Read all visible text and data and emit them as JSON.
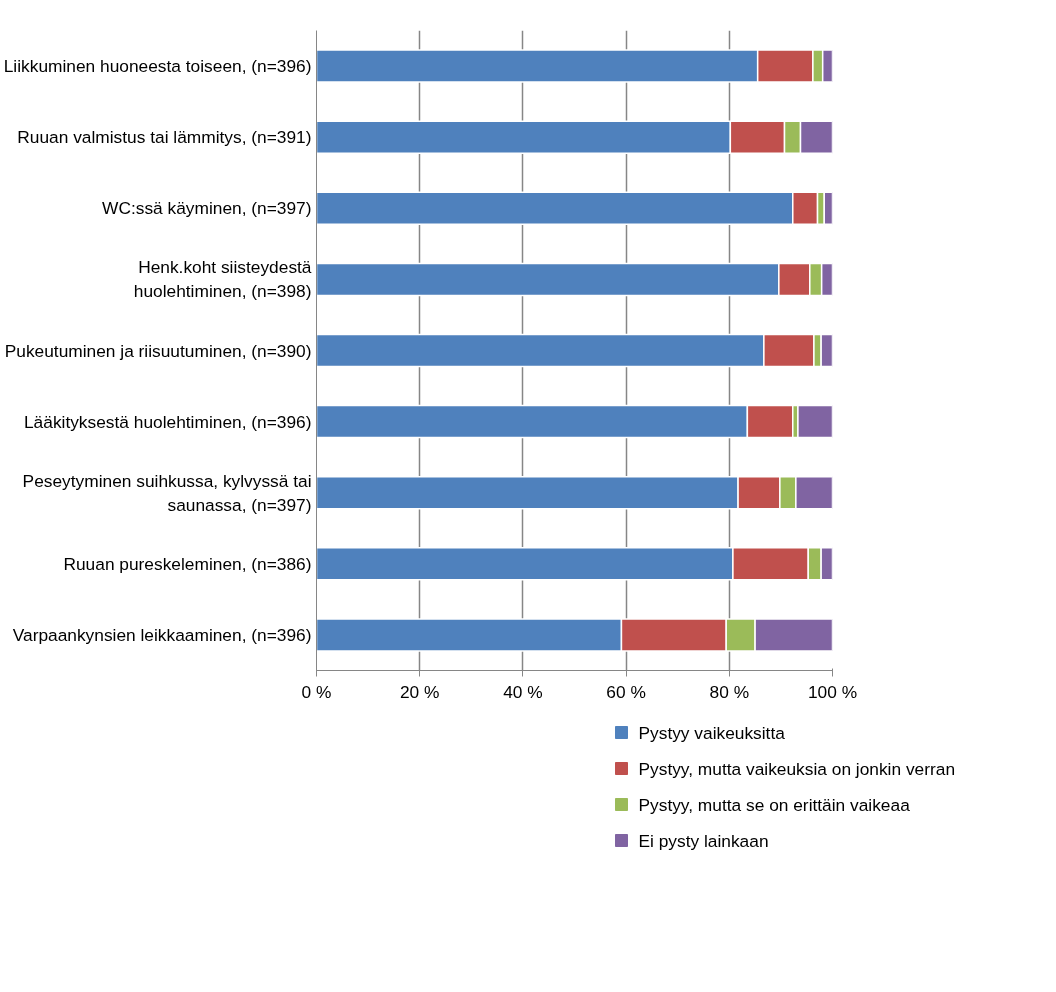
{
  "chart_data": {
    "type": "bar",
    "orientation": "horizontal",
    "stacked": true,
    "categories": [
      "Liikkuminen huoneesta toiseen, (n=396)",
      "Ruuan valmistus tai lämmitys, (n=391)",
      "WC:ssä käyminen, (n=397)",
      "Henk.koht siisteydestä huolehtiminen, (n=398)",
      "Pukeutuminen ja riisuutuminen, (n=390)",
      "Lääkityksestä huolehtiminen, (n=396)",
      "Peseytyminen suihkussa, kylvyssä tai saunassa, (n=397)",
      "Ruuan pureskeleminen, (n=386)",
      "Varpaankynsien leikkaaminen, (n=396)"
    ],
    "series": [
      {
        "name": "Pystyy vaikeuksitta",
        "color": "#4f81bd",
        "values": [
          85.5,
          80.2,
          92.3,
          89.6,
          86.7,
          83.5,
          81.7,
          80.7,
          59.1
        ]
      },
      {
        "name": "Pystyy, mutta vaikeuksia on jonkin verran",
        "color": "#c0504d",
        "values": [
          10.7,
          10.5,
          4.8,
          6.0,
          9.7,
          8.8,
          8.1,
          14.6,
          20.3
        ]
      },
      {
        "name": "Pystyy, mutta se on erittäin vaikeaa",
        "color": "#9bbb59",
        "values": [
          1.9,
          3.1,
          1.3,
          2.3,
          1.4,
          1.0,
          3.1,
          2.5,
          5.6
        ]
      },
      {
        "name": "Ei pysty lainkaan",
        "color": "#8064a2",
        "values": [
          1.9,
          6.2,
          1.6,
          2.1,
          2.2,
          6.7,
          7.1,
          2.2,
          15.0
        ]
      }
    ],
    "xlim": [
      0,
      100
    ],
    "xticks": [
      {
        "value": 0,
        "label": "0 %"
      },
      {
        "value": 20,
        "label": "20 %"
      },
      {
        "value": 40,
        "label": "40 %"
      },
      {
        "value": 60,
        "label": "60 %"
      },
      {
        "value": 80,
        "label": "80 %"
      },
      {
        "value": 100,
        "label": "100 %"
      }
    ],
    "grid": "x",
    "legend": "bottom"
  }
}
